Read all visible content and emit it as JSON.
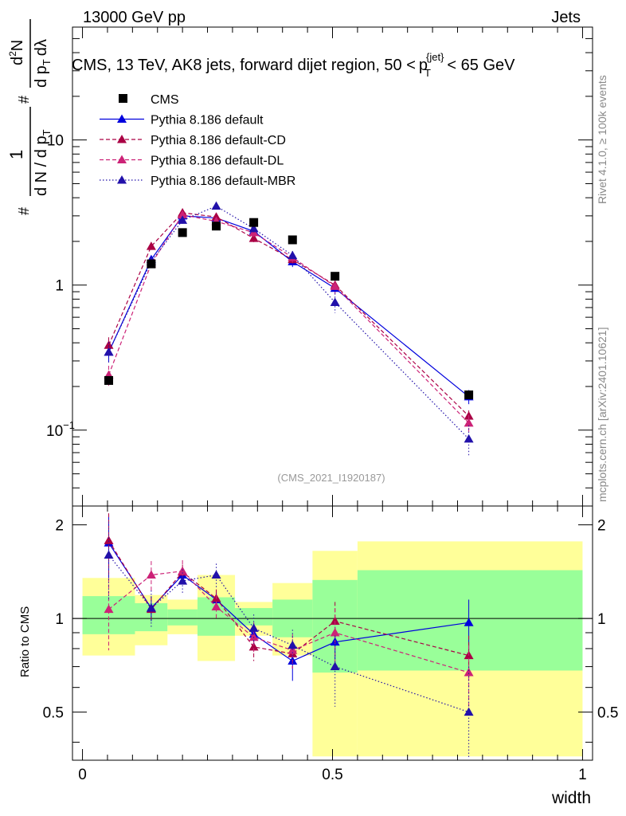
{
  "header": {
    "energy_label": "13000 GeV pp",
    "category_label": "Jets",
    "title_main": "CMS, 13 TeV, AK8 jets, forward dijet region, 50 <",
    "title_p": "p",
    "title_sub": "T",
    "title_sup": "{jet}",
    "title_tail": "< 65 GeV",
    "reference": "(CMS_2021_I1920187)",
    "side_rivet": "Rivet 4.1.0, ≥ 100k events",
    "side_mcplots": "mcplots.cern.ch [arXiv:2401.10621]"
  },
  "axes": {
    "xlabel": "width",
    "ratio_ylabel": "Ratio to CMS",
    "ylabel_top": {
      "num1": "#",
      "one": "1",
      "den1": "d N / d p",
      "den1_sub": "T",
      "num2": "#",
      "d2N": "d",
      "d2N_sup": "2",
      "d2N_N": "N",
      "den2": "d p",
      "den2_sub": "T",
      "den2_tail": "dλ"
    },
    "main_yticks": [
      {
        "value": 0.1,
        "label": "10",
        "exp": "−1"
      },
      {
        "value": 1,
        "label": "1",
        "exp": ""
      },
      {
        "value": 10,
        "label": "10",
        "exp": ""
      }
    ],
    "ratio_yticks": [
      {
        "value": 0.5,
        "label": "0.5"
      },
      {
        "value": 1,
        "label": "1"
      },
      {
        "value": 2,
        "label": "2"
      }
    ],
    "xticks": [
      {
        "value": 0,
        "label": "0"
      },
      {
        "value": 0.5,
        "label": "0.5"
      },
      {
        "value": 1,
        "label": "1"
      }
    ]
  },
  "chart_data": {
    "type": "scatter",
    "xlabel": "width",
    "ylabel": "1/(dN/dpT) d2N/(dpT dλ)",
    "yscale": "log",
    "xlim": [
      -0.02,
      1.02
    ],
    "ylim": [
      0.03,
      60
    ],
    "ratio_ylim": [
      0.35,
      2.3
    ],
    "x": [
      0.0525,
      0.1375,
      0.2,
      0.2675,
      0.3425,
      0.42,
      0.505,
      0.7725
    ],
    "bins": [
      [
        0,
        0.105
      ],
      [
        0.105,
        0.17
      ],
      [
        0.17,
        0.23
      ],
      [
        0.23,
        0.305
      ],
      [
        0.305,
        0.38
      ],
      [
        0.38,
        0.46
      ],
      [
        0.46,
        0.55
      ],
      [
        0.55,
        1.0
      ]
    ],
    "band_yellow": [
      [
        0.76,
        1.35
      ],
      [
        0.82,
        1.19
      ],
      [
        0.89,
        1.15
      ],
      [
        0.73,
        1.38
      ],
      [
        0.88,
        1.13
      ],
      [
        0.76,
        1.3
      ],
      [
        0.36,
        1.65
      ],
      [
        0.36,
        1.77
      ]
    ],
    "band_green": [
      [
        0.89,
        1.18
      ],
      [
        0.91,
        1.12
      ],
      [
        0.95,
        1.07
      ],
      [
        0.88,
        1.17
      ],
      [
        0.95,
        1.08
      ],
      [
        0.87,
        1.15
      ],
      [
        0.67,
        1.33
      ],
      [
        0.68,
        1.43
      ]
    ],
    "series": [
      {
        "name": "CMS",
        "style": "data",
        "color": "#000000",
        "values": [
          0.22,
          1.4,
          2.3,
          2.55,
          2.7,
          2.05,
          1.15,
          0.175
        ],
        "ratio": [
          1,
          1,
          1,
          1,
          1,
          1,
          1,
          1
        ],
        "ratio_err": [
          0,
          0,
          0,
          0,
          0,
          0,
          0,
          0
        ]
      },
      {
        "name": "Pythia 8.186 default",
        "style": "solid",
        "color": "#0000dd",
        "values": [
          0.345,
          1.5,
          3.0,
          2.9,
          2.35,
          1.45,
          0.95,
          0.17
        ],
        "ratio": [
          1.75,
          1.08,
          1.38,
          1.15,
          0.89,
          0.73,
          0.84,
          0.97
        ],
        "ratio_err": [
          0.4,
          0.1,
          0.08,
          0.08,
          0.08,
          0.1,
          0.1,
          0.18
        ]
      },
      {
        "name": "Pythia 8.186 default-CD",
        "style": "dashed",
        "color": "#aa0044",
        "values": [
          0.385,
          1.85,
          3.15,
          2.95,
          2.1,
          1.5,
          1.0,
          0.125
        ],
        "ratio": [
          1.78,
          1.07,
          1.41,
          1.16,
          0.81,
          0.77,
          0.98,
          0.76
        ],
        "ratio_err": [
          0.4,
          0.1,
          0.08,
          0.08,
          0.08,
          0.08,
          0.15,
          0.12
        ]
      },
      {
        "name": "Pythia 8.186 default-DL",
        "style": "dashed",
        "color": "#cc2277",
        "values": [
          0.24,
          1.4,
          3.05,
          2.75,
          2.3,
          1.55,
          0.98,
          0.112
        ],
        "ratio": [
          1.07,
          1.38,
          1.42,
          1.09,
          0.87,
          0.79,
          0.9,
          0.67
        ],
        "ratio_err": [
          0.28,
          0.15,
          0.12,
          0.1,
          0.1,
          0.1,
          0.18,
          0.15
        ]
      },
      {
        "name": "Pythia 8.186 default-MBR",
        "style": "dotted",
        "color": "#2211aa",
        "values": [
          0.345,
          1.45,
          2.8,
          3.5,
          2.45,
          1.6,
          0.76,
          0.087
        ],
        "ratio": [
          1.6,
          1.08,
          1.32,
          1.38,
          0.93,
          0.82,
          0.7,
          0.5
        ],
        "ratio_err": [
          0.45,
          0.15,
          0.12,
          0.12,
          0.1,
          0.1,
          0.18,
          0.2
        ]
      }
    ]
  }
}
